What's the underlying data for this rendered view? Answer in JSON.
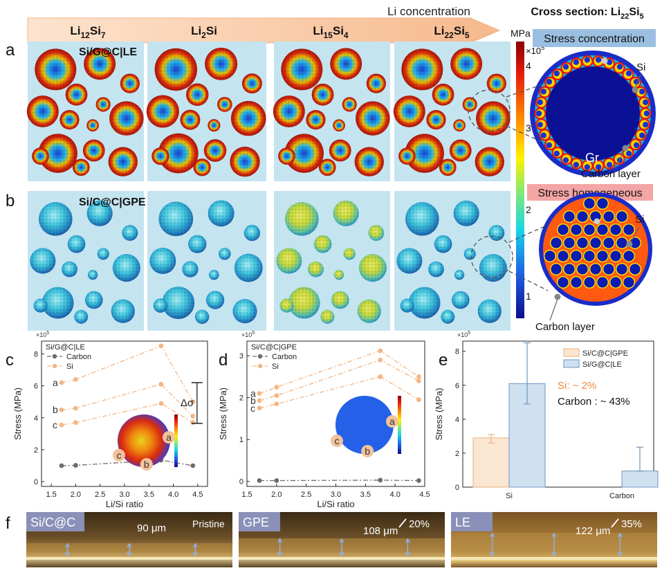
{
  "header": {
    "arrow_label": "Li concentration",
    "phases": [
      {
        "base": "Li",
        "sub1": "12",
        "mid": "Si",
        "sub2": "7"
      },
      {
        "base": "Li",
        "sub1": "2",
        "mid": "Si",
        "sub2": ""
      },
      {
        "base": "Li",
        "sub1": "15",
        "mid": "Si",
        "sub2": "4"
      },
      {
        "base": "Li",
        "sub1": "22",
        "mid": "Si",
        "sub2": "5"
      }
    ],
    "cross_section": {
      "prefix": "Cross section: Li",
      "sub1": "22",
      "mid": "Si",
      "sub2": "5"
    }
  },
  "panel_letters": {
    "a": "a",
    "b": "b",
    "c": "c",
    "d": "d",
    "e": "e",
    "f": "f"
  },
  "row_a": {
    "label": "Si/G@C|LE",
    "badge": "Stress concentration",
    "si": "Si",
    "gr": "Gr",
    "carbon": "Carbon layer"
  },
  "row_b": {
    "label": "Si/C@C|GPE",
    "badge": "Stress homogeneous",
    "si": "Si",
    "carbon": "Carbon layer"
  },
  "colorbar": {
    "unit": "MPa",
    "scale": "×10",
    "scale_exp": "5",
    "ticks": [
      "4",
      "3",
      "2",
      "1"
    ]
  },
  "colors": {
    "low": "#2b2bc6",
    "high": "#b80f0f",
    "si_line": "#f3b684",
    "carbon_line": "#6d6d6d",
    "panel_bg": "#c4e4f0"
  },
  "chart_data": [
    {
      "type": "line",
      "panel": "c",
      "legend_title": "Si/G@C|LE",
      "scale_note": "×10",
      "scale_exp": "5",
      "xlabel": "Li/Si ratio",
      "ylabel": "Stress (MPa)",
      "x": [
        1.71,
        2.0,
        3.75,
        4.4
      ],
      "xlim": [
        1.3,
        4.7
      ],
      "ylim": [
        -0.3,
        8.8
      ],
      "xticks": [
        "1.5",
        "2.0",
        "2.5",
        "3.0",
        "3.5",
        "4.0",
        "4.5"
      ],
      "yticks": [
        "0",
        "2",
        "4",
        "6",
        "8"
      ],
      "series": [
        {
          "name": "Carbon",
          "values": [
            1.0,
            1.02,
            1.35,
            1.0
          ]
        },
        {
          "name": "Si",
          "point_label": "a",
          "values": [
            6.2,
            6.4,
            8.5,
            5.0
          ]
        },
        {
          "name": "",
          "point_label": "b",
          "values": [
            4.5,
            4.6,
            6.1,
            4.1
          ]
        },
        {
          "name": "",
          "point_label": "c",
          "values": [
            3.55,
            3.7,
            4.9,
            3.7
          ]
        }
      ],
      "annotation": "Δσ",
      "inset_labels": [
        "a",
        "b",
        "c"
      ]
    },
    {
      "type": "line",
      "panel": "d",
      "legend_title": "Si/C@C|GPE",
      "scale_note": "×10",
      "scale_exp": "5",
      "xlabel": "Li/Si ratio",
      "ylabel": "Stress (MPa)",
      "x": [
        1.71,
        2.0,
        3.75,
        4.4
      ],
      "xlim": [
        1.5,
        4.5
      ],
      "ylim": [
        -0.12,
        3.35
      ],
      "xticks": [
        "1.5",
        "2.0",
        "2.5",
        "3.0",
        "3.5",
        "4.0",
        "4.5"
      ],
      "yticks": [
        "0",
        "1",
        "2",
        "3"
      ],
      "series": [
        {
          "name": "Carbon",
          "values": [
            0.02,
            0.02,
            0.03,
            0.02
          ]
        },
        {
          "name": "Si",
          "point_label": "a",
          "values": [
            2.1,
            2.25,
            3.12,
            2.5
          ]
        },
        {
          "name": "",
          "point_label": "b",
          "values": [
            1.93,
            2.05,
            2.9,
            2.4
          ]
        },
        {
          "name": "",
          "point_label": "c",
          "values": [
            1.75,
            1.85,
            2.5,
            1.95
          ]
        }
      ],
      "inset_labels": [
        "a",
        "b",
        "c"
      ]
    },
    {
      "type": "bar",
      "panel": "e",
      "scale_note": "×10",
      "scale_exp": "5",
      "categories": [
        "Si",
        "Carbon"
      ],
      "ylabel": "Stress (MPa)",
      "ylim": [
        0,
        8.6
      ],
      "yticks": [
        "0",
        "2",
        "4",
        "6",
        "8"
      ],
      "series": [
        {
          "name": "Si/C@C|GPE",
          "values": [
            2.9,
            0.0
          ],
          "err_low": [
            2.6,
            0.0
          ],
          "err_high": [
            3.1,
            0.0
          ],
          "color": "#fbe6d2",
          "edge": "#eeb07a"
        },
        {
          "name": "Si/G@C|LE",
          "values": [
            6.1,
            0.95
          ],
          "err_low": [
            4.9,
            0.95
          ],
          "err_high": [
            8.5,
            2.35
          ],
          "color": "#cfe0f1",
          "edge": "#6d96be"
        }
      ],
      "note_si": "Si: ~ 2%",
      "note_carbon": "Carbon : ~ 43%"
    }
  ],
  "row_f": [
    {
      "tag": "Si/C@C",
      "thickness": "90 μm",
      "state": "Pristine"
    },
    {
      "tag": "GPE",
      "thickness": "108 μm",
      "state": "20%"
    },
    {
      "tag": "LE",
      "thickness": "122 μm",
      "state": "35%"
    }
  ]
}
